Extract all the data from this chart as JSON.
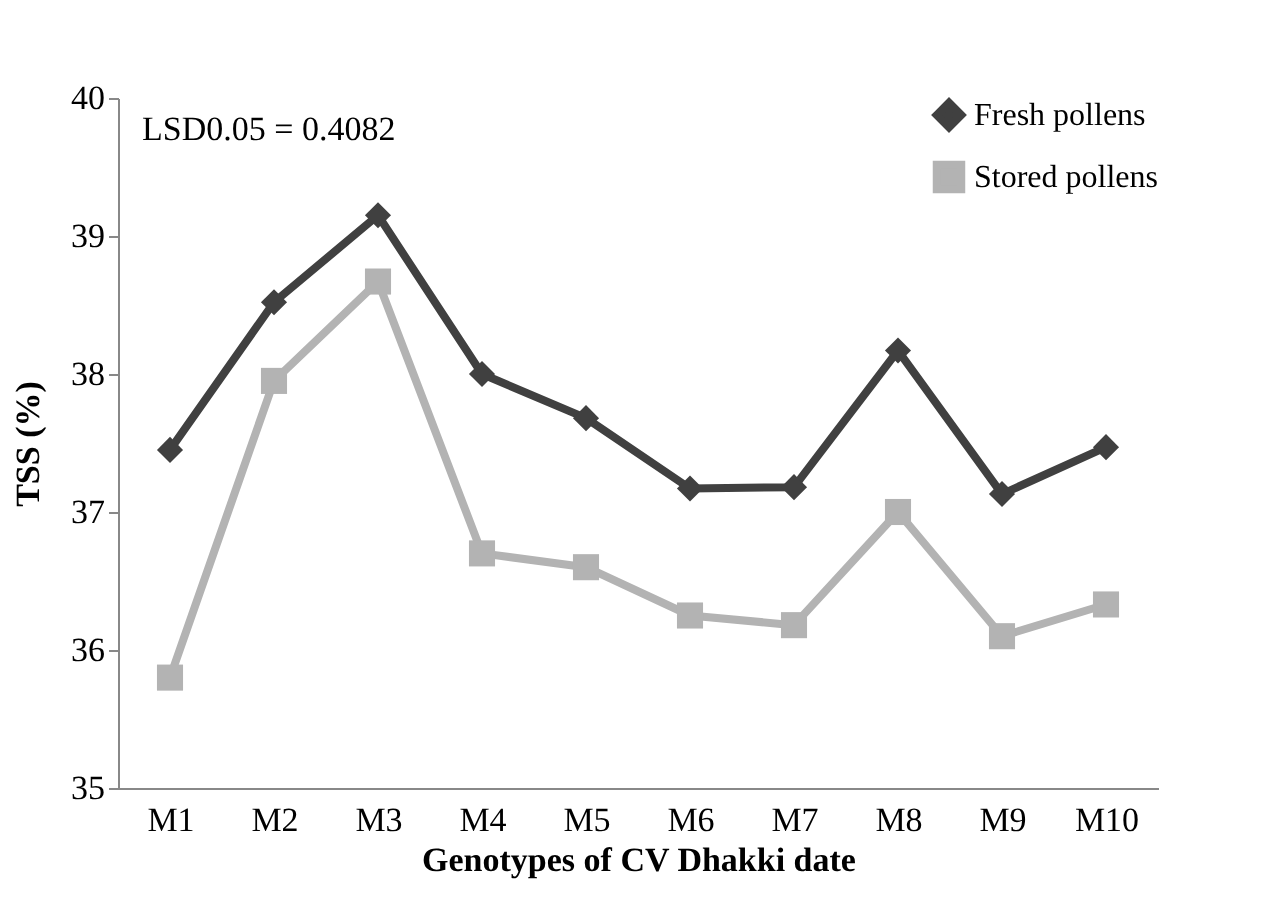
{
  "chart_data": {
    "type": "line",
    "xlabel": "Genotypes of CV Dhakki date",
    "ylabel": "TSS (%)",
    "annotations": [
      "LSD0.05 = 0.4082"
    ],
    "categories": [
      "M1",
      "M2",
      "M3",
      "M4",
      "M5",
      "M6",
      "M7",
      "M8",
      "M9",
      "M10"
    ],
    "series": [
      {
        "name": "Fresh pollens",
        "color": "#404040",
        "marker": "diamond",
        "values": [
          37.45,
          38.52,
          39.15,
          38.0,
          37.68,
          37.17,
          37.18,
          38.17,
          37.13,
          37.47
        ]
      },
      {
        "name": "Stored pollens",
        "color": "#b3b3b3",
        "marker": "square",
        "values": [
          35.8,
          37.95,
          38.67,
          36.7,
          36.6,
          36.25,
          36.18,
          37.0,
          36.1,
          36.33
        ]
      }
    ],
    "ylim": [
      35,
      40
    ],
    "yticks": [
      35,
      36,
      37,
      38,
      39,
      40
    ],
    "grid": false,
    "legend": "top right",
    "line_style": "solid"
  }
}
